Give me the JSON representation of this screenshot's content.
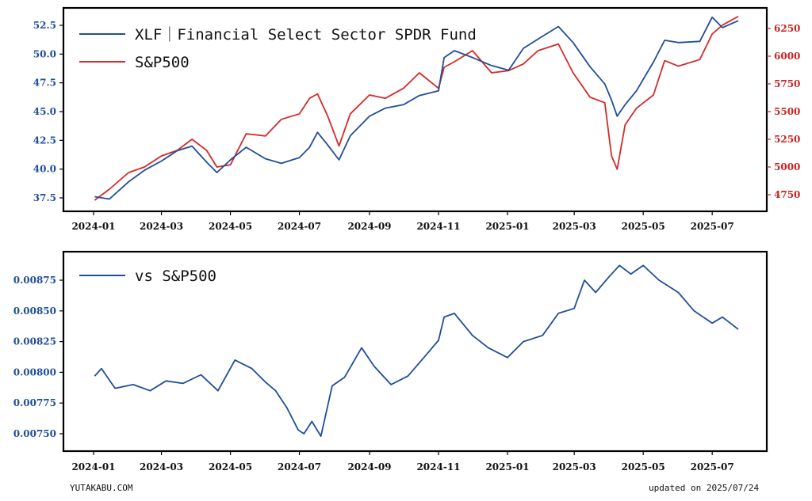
{
  "footer": {
    "site": "YUTAKABU.COM",
    "updated": "updated on 2025/07/24"
  },
  "chart_data": [
    {
      "type": "line",
      "x_ticks": [
        "2024-01",
        "2024-03",
        "2024-05",
        "2024-07",
        "2024-09",
        "2024-11",
        "2025-01",
        "2025-03",
        "2025-05",
        "2025-07"
      ],
      "y_left_ticks": [
        "37.5",
        "40.0",
        "42.5",
        "45.0",
        "47.5",
        "50.0",
        "52.5"
      ],
      "y_right_ticks": [
        "4750",
        "5000",
        "5250",
        "5500",
        "5750",
        "6000",
        "6250"
      ],
      "ylim_left": [
        36.6,
        54.1
      ],
      "ylim_right": [
        4640,
        6420
      ],
      "legend": [
        "XLF｜Financial Select Sector SPDR Fund",
        "S&P500"
      ],
      "legend_position": "top-left",
      "colors": {
        "xlf": "#1f4e9a",
        "sp500": "#d42a2a"
      },
      "series": [
        {
          "name": "XLF｜Financial Select Sector SPDR Fund",
          "axis": "left",
          "x": [
            "2024-01-02",
            "2024-01-15",
            "2024-02-01",
            "2024-02-15",
            "2024-03-01",
            "2024-03-15",
            "2024-03-28",
            "2024-04-10",
            "2024-04-19",
            "2024-05-01",
            "2024-05-15",
            "2024-06-01",
            "2024-06-15",
            "2024-07-01",
            "2024-07-10",
            "2024-07-17",
            "2024-07-26",
            "2024-08-05",
            "2024-08-15",
            "2024-09-01",
            "2024-09-15",
            "2024-10-01",
            "2024-10-15",
            "2024-11-01",
            "2024-11-06",
            "2024-11-15",
            "2024-12-01",
            "2024-12-18",
            "2025-01-02",
            "2025-01-15",
            "2025-01-28",
            "2025-02-15",
            "2025-02-28",
            "2025-03-15",
            "2025-03-28",
            "2025-04-03",
            "2025-04-08",
            "2025-04-15",
            "2025-04-25",
            "2025-05-10",
            "2025-05-20",
            "2025-06-01",
            "2025-06-20",
            "2025-07-01",
            "2025-07-10",
            "2025-07-24"
          ],
          "values": [
            37.6,
            37.4,
            38.9,
            39.9,
            40.7,
            41.6,
            42.0,
            40.6,
            39.7,
            40.8,
            41.9,
            40.9,
            40.5,
            41.0,
            41.9,
            43.2,
            42.1,
            40.8,
            42.9,
            44.6,
            45.3,
            45.6,
            46.4,
            46.8,
            49.7,
            50.3,
            49.7,
            49.0,
            48.6,
            50.5,
            51.3,
            52.4,
            51.0,
            48.9,
            47.4,
            46.0,
            44.6,
            45.6,
            46.8,
            49.3,
            51.2,
            51.0,
            51.1,
            53.2,
            52.3,
            52.9
          ]
        },
        {
          "name": "S&P500",
          "axis": "right",
          "x": [
            "2024-01-02",
            "2024-01-15",
            "2024-02-01",
            "2024-02-15",
            "2024-03-01",
            "2024-03-15",
            "2024-03-28",
            "2024-04-10",
            "2024-04-19",
            "2024-05-01",
            "2024-05-15",
            "2024-06-01",
            "2024-06-15",
            "2024-07-01",
            "2024-07-10",
            "2024-07-17",
            "2024-07-26",
            "2024-08-05",
            "2024-08-15",
            "2024-09-01",
            "2024-09-15",
            "2024-10-01",
            "2024-10-15",
            "2024-11-01",
            "2024-11-06",
            "2024-11-15",
            "2024-12-01",
            "2024-12-18",
            "2025-01-02",
            "2025-01-15",
            "2025-01-28",
            "2025-02-15",
            "2025-02-28",
            "2025-03-15",
            "2025-03-28",
            "2025-04-03",
            "2025-04-08",
            "2025-04-15",
            "2025-04-25",
            "2025-05-10",
            "2025-05-20",
            "2025-06-01",
            "2025-06-20",
            "2025-07-01",
            "2025-07-10",
            "2025-07-24"
          ],
          "values": [
            4700,
            4800,
            4950,
            5000,
            5100,
            5150,
            5250,
            5150,
            5000,
            5020,
            5300,
            5280,
            5430,
            5480,
            5620,
            5660,
            5460,
            5190,
            5480,
            5650,
            5620,
            5710,
            5850,
            5710,
            5900,
            5950,
            6050,
            5850,
            5870,
            5930,
            6050,
            6110,
            5850,
            5630,
            5580,
            5100,
            4980,
            5380,
            5530,
            5650,
            5960,
            5910,
            5970,
            6200,
            6280,
            6360
          ]
        }
      ]
    },
    {
      "type": "line",
      "x_ticks": [
        "2024-01",
        "2024-03",
        "2024-05",
        "2024-07",
        "2024-09",
        "2024-11",
        "2025-01",
        "2025-03",
        "2025-05",
        "2025-07"
      ],
      "y_ticks": [
        "0.00750",
        "0.00775",
        "0.00800",
        "0.00825",
        "0.00850",
        "0.00875"
      ],
      "ylim": [
        0.00737,
        0.00896
      ],
      "legend": [
        "vs S&P500"
      ],
      "legend_position": "top-left",
      "colors": {
        "ratio": "#1f4e9a"
      },
      "series": [
        {
          "name": "vs S&P500",
          "x": [
            "2024-01-02",
            "2024-01-08",
            "2024-01-20",
            "2024-02-05",
            "2024-02-20",
            "2024-03-05",
            "2024-03-20",
            "2024-04-05",
            "2024-04-20",
            "2024-05-05",
            "2024-05-20",
            "2024-06-01",
            "2024-06-10",
            "2024-06-20",
            "2024-06-30",
            "2024-07-05",
            "2024-07-12",
            "2024-07-20",
            "2024-07-30",
            "2024-08-10",
            "2024-08-25",
            "2024-09-05",
            "2024-09-20",
            "2024-10-05",
            "2024-10-20",
            "2024-11-01",
            "2024-11-06",
            "2024-11-15",
            "2024-12-01",
            "2024-12-15",
            "2025-01-01",
            "2025-01-15",
            "2025-02-01",
            "2025-02-15",
            "2025-03-01",
            "2025-03-10",
            "2025-03-20",
            "2025-04-01",
            "2025-04-10",
            "2025-04-20",
            "2025-05-01",
            "2025-05-15",
            "2025-06-01",
            "2025-06-15",
            "2025-07-01",
            "2025-07-10",
            "2025-07-24"
          ],
          "values": [
            0.00797,
            0.00803,
            0.00787,
            0.0079,
            0.00785,
            0.00793,
            0.00791,
            0.00798,
            0.00785,
            0.0081,
            0.00803,
            0.00792,
            0.00785,
            0.00771,
            0.00753,
            0.0075,
            0.0076,
            0.00748,
            0.00789,
            0.00796,
            0.0082,
            0.00805,
            0.0079,
            0.00797,
            0.00813,
            0.00826,
            0.00845,
            0.00848,
            0.0083,
            0.0082,
            0.00812,
            0.00825,
            0.0083,
            0.00848,
            0.00852,
            0.00875,
            0.00865,
            0.00878,
            0.00887,
            0.0088,
            0.00887,
            0.00875,
            0.00865,
            0.0085,
            0.0084,
            0.00845,
            0.00835
          ]
        }
      ]
    }
  ]
}
